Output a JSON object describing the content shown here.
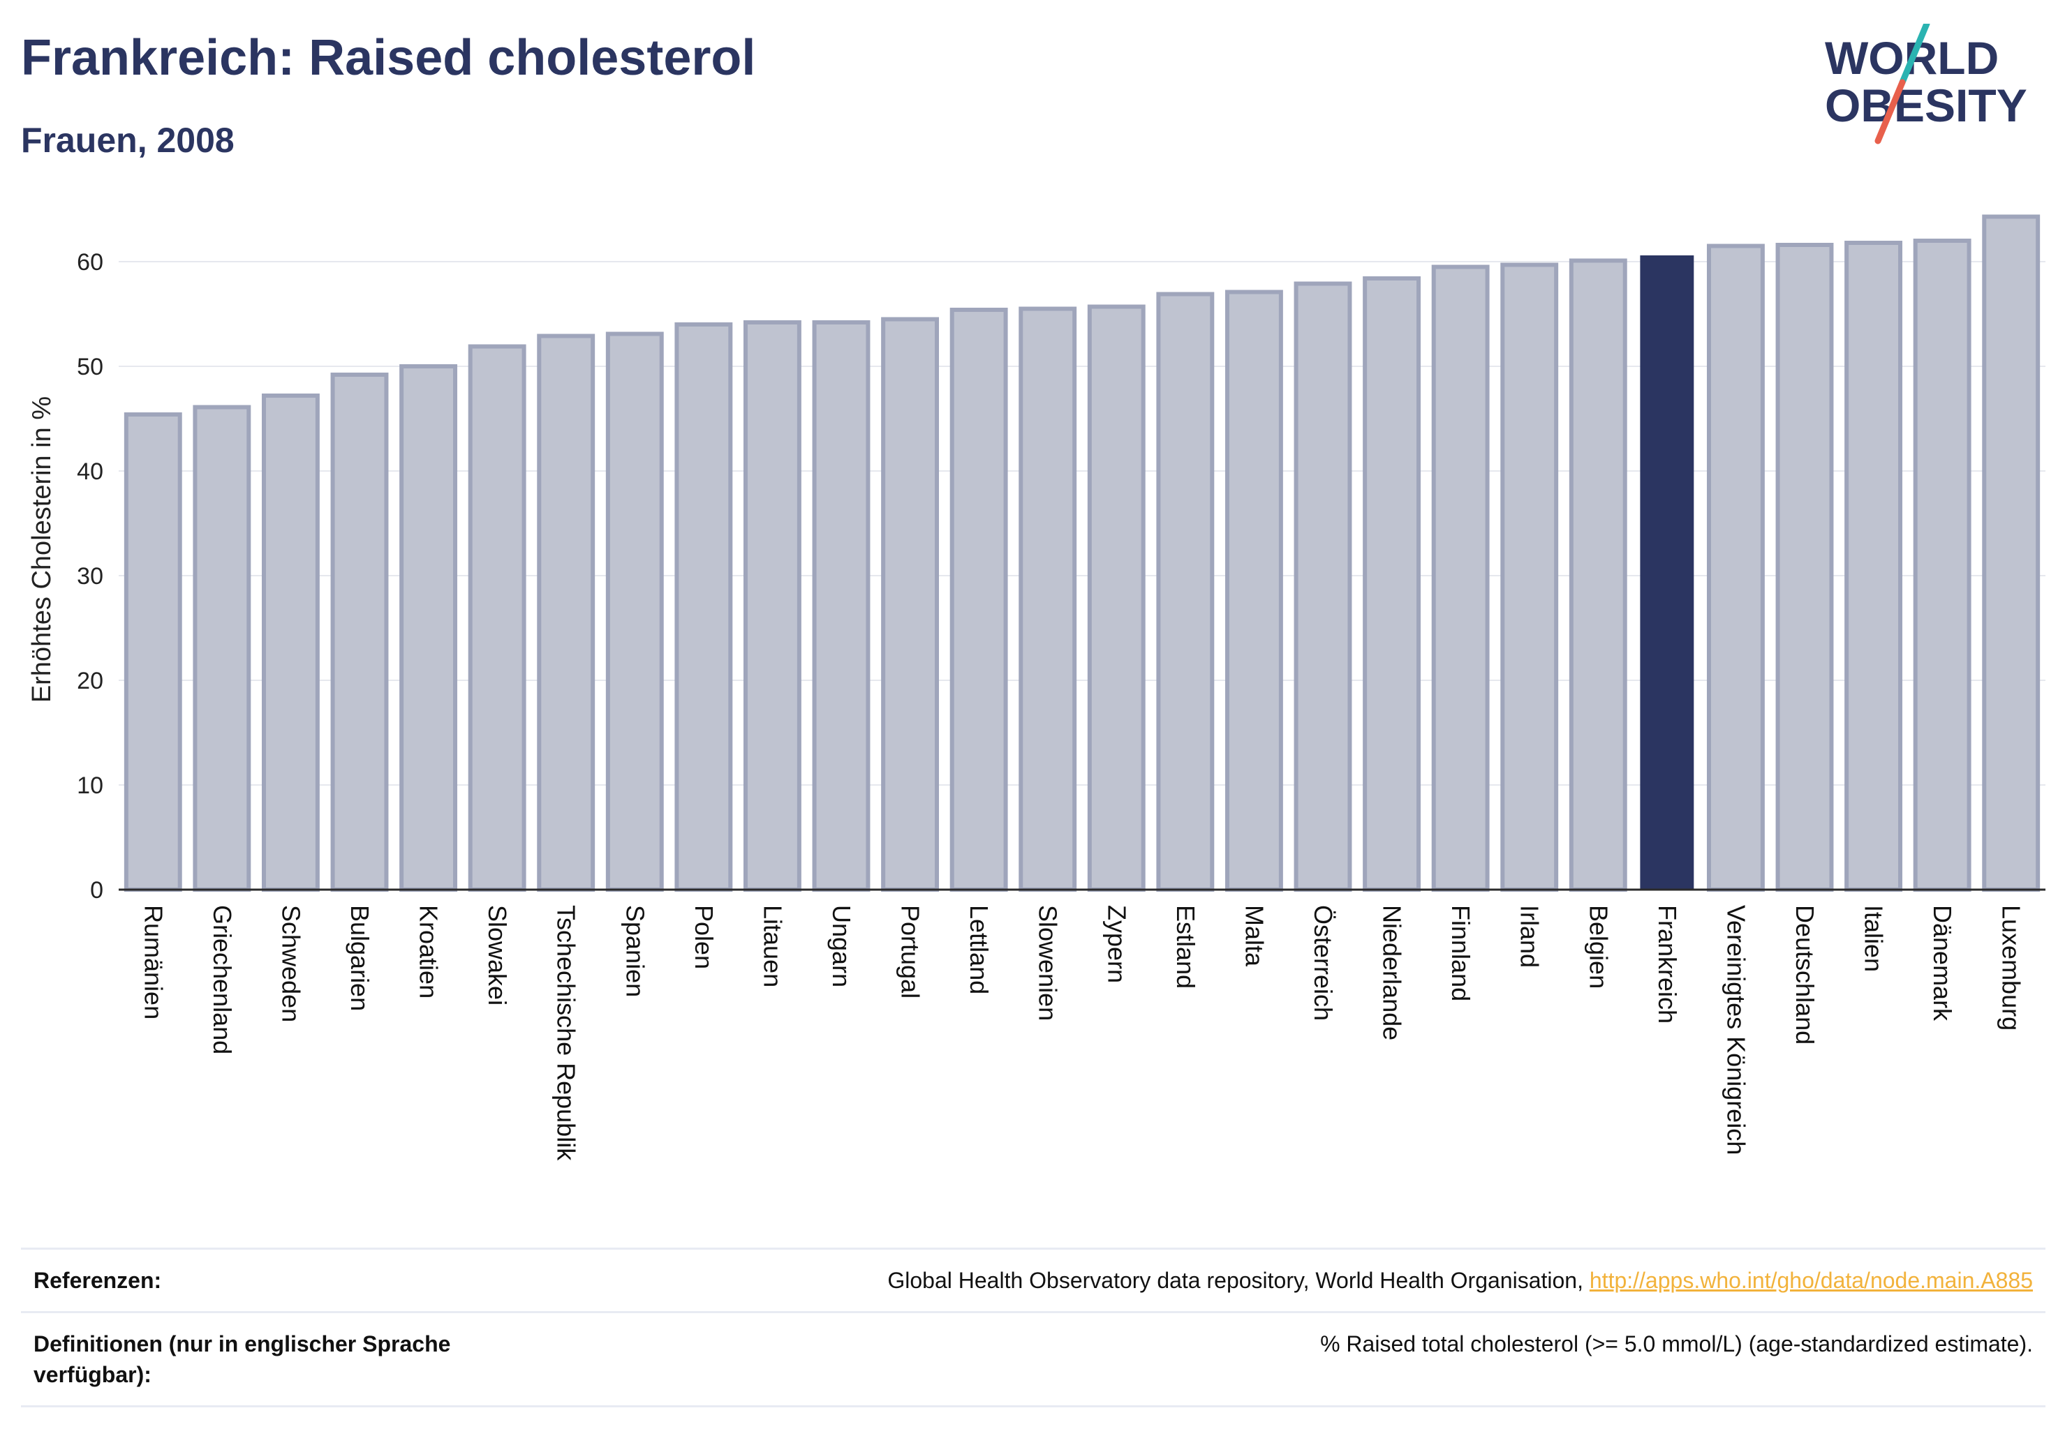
{
  "title": "Frankreich: Raised cholesterol",
  "subtitle": "Frauen, 2008",
  "logo": {
    "line1": "WORLD",
    "line2": "OBESITY",
    "colors": {
      "text": "#2b3561",
      "slash_teal": "#2ab3b1",
      "slash_coral": "#e8604c"
    }
  },
  "colors": {
    "bar": "#bfc3d0",
    "bar_stroke": "#9fa5bb",
    "highlight": "#2b3561",
    "grid": "#e6e8ee",
    "axis": "#2b2b2b"
  },
  "chart_data": {
    "type": "bar",
    "title": "Frankreich: Raised cholesterol",
    "subtitle": "Frauen, 2008",
    "xlabel": "",
    "ylabel": "Erhöhtes Cholesterin in %",
    "ylim": [
      0,
      65
    ],
    "yticks": [
      0,
      10,
      20,
      30,
      40,
      50,
      60
    ],
    "grid": true,
    "highlight": "Frankreich",
    "categories": [
      "Rumänien",
      "Griechenland",
      "Schweden",
      "Bulgarien",
      "Kroatien",
      "Slowakei",
      "Tschechische Republik",
      "Spanien",
      "Polen",
      "Litauen",
      "Ungarn",
      "Portugal",
      "Lettland",
      "Slowenien",
      "Zypern",
      "Estland",
      "Malta",
      "Österreich",
      "Niederlande",
      "Finnland",
      "Irland",
      "Belgien",
      "Frankreich",
      "Vereinigtes Königreich",
      "Deutschland",
      "Italien",
      "Dänemark",
      "Luxemburg"
    ],
    "values": [
      45.4,
      46.1,
      47.2,
      49.2,
      50.0,
      51.9,
      52.9,
      53.1,
      54.0,
      54.2,
      54.2,
      54.5,
      55.4,
      55.5,
      55.7,
      56.9,
      57.1,
      57.9,
      58.4,
      59.5,
      59.7,
      60.1,
      60.6,
      61.5,
      61.6,
      61.8,
      62.0,
      64.3
    ]
  },
  "references": {
    "refs_label": "Referenzen:",
    "refs_text": "Global Health Observatory data repository, World Health Organisation, ",
    "refs_link": "http://apps.who.int/gho/data/node.main.A885",
    "defs_label": "Definitionen (nur in englischer Sprache verfügbar):",
    "defs_text": "% Raised total cholesterol (>= 5.0 mmol/L) (age-standardized estimate)."
  }
}
